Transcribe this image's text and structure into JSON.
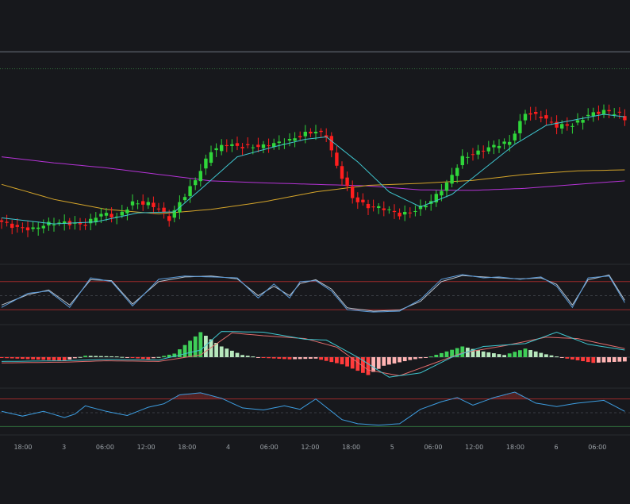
{
  "chart_data": {
    "type": "candlestick",
    "x_axis": {
      "ticks": [
        "18:00",
        "3",
        "06:00",
        "12:00",
        "18:00",
        "4",
        "06:00",
        "12:00",
        "18:00",
        "5",
        "06:00",
        "12:00",
        "18:00",
        "6",
        "06:00"
      ]
    },
    "colors": {
      "background": "#17181c",
      "up": "#2fd63a",
      "down": "#ff1e1e",
      "ma_fast": "#3fc6cf",
      "ma_mid": "#d4a42a",
      "ma_slow": "#b533d6",
      "osc_a": "#5b9bd9",
      "osc_b": "#b9c4d0",
      "hist_up": "#3fcf58",
      "hist_down": "#ff3b3b",
      "level_line": "#9b2a2a",
      "separator": "#2a2c31"
    },
    "price": {
      "close_anchors": [
        [
          0,
          80.0
        ],
        [
          3,
          79.0
        ],
        [
          6,
          78.5
        ],
        [
          9,
          79.5
        ],
        [
          12,
          80.0
        ],
        [
          16,
          79.5
        ],
        [
          19,
          81.5
        ],
        [
          22,
          81.0
        ],
        [
          25,
          84.0
        ],
        [
          28,
          83.5
        ],
        [
          30,
          82.5
        ],
        [
          32,
          80.5
        ],
        [
          34,
          84.0
        ],
        [
          37,
          88.5
        ],
        [
          40,
          94.0
        ],
        [
          43,
          95.5
        ],
        [
          46,
          95.2
        ],
        [
          50,
          95.0
        ],
        [
          54,
          96.0
        ],
        [
          58,
          97.8
        ],
        [
          60,
          98.0
        ],
        [
          62,
          97.0
        ],
        [
          64,
          91.0
        ],
        [
          67,
          85.0
        ],
        [
          70,
          83.0
        ],
        [
          73,
          82.5
        ],
        [
          76,
          81.5
        ],
        [
          79,
          82.5
        ],
        [
          82,
          84.0
        ],
        [
          85,
          87.5
        ],
        [
          88,
          93.0
        ],
        [
          91,
          94.0
        ],
        [
          94,
          95.0
        ],
        [
          97,
          96.0
        ],
        [
          100,
          102.0
        ],
        [
          103,
          101.0
        ],
        [
          106,
          99.0
        ],
        [
          109,
          99.5
        ],
        [
          112,
          101.5
        ],
        [
          115,
          102.0
        ],
        [
          118,
          101.5
        ],
        [
          119,
          100.5
        ]
      ],
      "ma_fast": [
        [
          0,
          80.8
        ],
        [
          10,
          79.6
        ],
        [
          18,
          80.0
        ],
        [
          26,
          81.8
        ],
        [
          33,
          82.0
        ],
        [
          38,
          86.5
        ],
        [
          45,
          93.0
        ],
        [
          52,
          95.0
        ],
        [
          58,
          96.5
        ],
        [
          62,
          97.0
        ],
        [
          68,
          92.0
        ],
        [
          74,
          86.0
        ],
        [
          80,
          83.0
        ],
        [
          86,
          85.5
        ],
        [
          92,
          90.5
        ],
        [
          98,
          95.5
        ],
        [
          104,
          99.3
        ],
        [
          110,
          100.5
        ],
        [
          115,
          101.5
        ],
        [
          119,
          101.0
        ]
      ],
      "ma_mid": [
        [
          0,
          87.5
        ],
        [
          10,
          84.5
        ],
        [
          20,
          82.5
        ],
        [
          30,
          81.6
        ],
        [
          40,
          82.5
        ],
        [
          50,
          84.0
        ],
        [
          60,
          86.0
        ],
        [
          70,
          87.3
        ],
        [
          80,
          87.7
        ],
        [
          90,
          88.3
        ],
        [
          100,
          89.5
        ],
        [
          110,
          90.2
        ],
        [
          119,
          90.4
        ]
      ],
      "ma_slow": [
        [
          0,
          93.0
        ],
        [
          10,
          91.8
        ],
        [
          20,
          90.8
        ],
        [
          30,
          89.5
        ],
        [
          40,
          88.2
        ],
        [
          50,
          87.8
        ],
        [
          60,
          87.5
        ],
        [
          70,
          87.2
        ],
        [
          80,
          86.4
        ],
        [
          90,
          86.3
        ],
        [
          100,
          86.7
        ],
        [
          110,
          87.5
        ],
        [
          119,
          88.2
        ]
      ],
      "ylim": [
        72,
        118
      ],
      "level_upper": 114.0,
      "level_dashed": 110.6
    },
    "oscillator_1": {
      "upper_level": 80,
      "lower_level": 20,
      "mid_level": 50,
      "series_a": [
        [
          0,
          25
        ],
        [
          5,
          55
        ],
        [
          9,
          60
        ],
        [
          13,
          25
        ],
        [
          17,
          88
        ],
        [
          21,
          80
        ],
        [
          25,
          28
        ],
        [
          30,
          85
        ],
        [
          35,
          92
        ],
        [
          40,
          90
        ],
        [
          45,
          88
        ],
        [
          49,
          45
        ],
        [
          52,
          75
        ],
        [
          55,
          45
        ],
        [
          57,
          80
        ],
        [
          60,
          82
        ],
        [
          63,
          60
        ],
        [
          66,
          20
        ],
        [
          71,
          15
        ],
        [
          76,
          17
        ],
        [
          80,
          42
        ],
        [
          84,
          85
        ],
        [
          88,
          95
        ],
        [
          92,
          88
        ],
        [
          95,
          90
        ],
        [
          99,
          85
        ],
        [
          103,
          90
        ],
        [
          106,
          70
        ],
        [
          109,
          25
        ],
        [
          112,
          88
        ],
        [
          116,
          92
        ],
        [
          119,
          35
        ]
      ],
      "series_b": [
        [
          0,
          30
        ],
        [
          5,
          52
        ],
        [
          9,
          62
        ],
        [
          13,
          30
        ],
        [
          17,
          84
        ],
        [
          21,
          82
        ],
        [
          25,
          32
        ],
        [
          30,
          80
        ],
        [
          35,
          90
        ],
        [
          40,
          92
        ],
        [
          45,
          86
        ],
        [
          49,
          50
        ],
        [
          52,
          70
        ],
        [
          55,
          50
        ],
        [
          57,
          76
        ],
        [
          60,
          84
        ],
        [
          63,
          64
        ],
        [
          66,
          24
        ],
        [
          71,
          17
        ],
        [
          76,
          19
        ],
        [
          80,
          38
        ],
        [
          84,
          80
        ],
        [
          88,
          93
        ],
        [
          92,
          90
        ],
        [
          95,
          88
        ],
        [
          99,
          86
        ],
        [
          103,
          88
        ],
        [
          106,
          74
        ],
        [
          109,
          30
        ],
        [
          112,
          84
        ],
        [
          116,
          94
        ],
        [
          119,
          40
        ]
      ]
    },
    "oscillator_2": {
      "hist": [
        [
          0,
          -0.1
        ],
        [
          12,
          -0.5
        ],
        [
          16,
          0.2
        ],
        [
          22,
          0.1
        ],
        [
          28,
          -0.3
        ],
        [
          33,
          0.5
        ],
        [
          38,
          3.5
        ],
        [
          42,
          1.5
        ],
        [
          46,
          0.3
        ],
        [
          50,
          -0.1
        ],
        [
          55,
          -0.3
        ],
        [
          60,
          -0.2
        ],
        [
          65,
          -1.0
        ],
        [
          70,
          -2.5
        ],
        [
          73,
          -1.2
        ],
        [
          78,
          -0.4
        ],
        [
          82,
          0.1
        ],
        [
          88,
          1.5
        ],
        [
          92,
          0.8
        ],
        [
          96,
          0.3
        ],
        [
          100,
          1.2
        ],
        [
          104,
          0.4
        ],
        [
          108,
          -0.2
        ],
        [
          113,
          -0.8
        ],
        [
          119,
          -0.6
        ]
      ],
      "line_a": [
        [
          0,
          -0.6
        ],
        [
          12,
          -0.5
        ],
        [
          20,
          -0.3
        ],
        [
          30,
          -0.4
        ],
        [
          38,
          1.0
        ],
        [
          42,
          3.6
        ],
        [
          50,
          3.5
        ],
        [
          58,
          2.5
        ],
        [
          62,
          2.4
        ],
        [
          68,
          0.0
        ],
        [
          74,
          -2.8
        ],
        [
          80,
          -2.2
        ],
        [
          86,
          0.0
        ],
        [
          92,
          1.5
        ],
        [
          100,
          1.9
        ],
        [
          106,
          3.5
        ],
        [
          112,
          1.8
        ],
        [
          119,
          1.0
        ]
      ],
      "line_b": [
        [
          0,
          -0.8
        ],
        [
          12,
          -0.7
        ],
        [
          20,
          -0.5
        ],
        [
          30,
          -0.6
        ],
        [
          38,
          0.3
        ],
        [
          44,
          3.4
        ],
        [
          50,
          3.0
        ],
        [
          58,
          2.6
        ],
        [
          64,
          1.4
        ],
        [
          70,
          -1.8
        ],
        [
          76,
          -2.6
        ],
        [
          82,
          -1.0
        ],
        [
          88,
          0.6
        ],
        [
          96,
          1.6
        ],
        [
          104,
          2.8
        ],
        [
          110,
          2.6
        ],
        [
          119,
          1.2
        ]
      ]
    },
    "oscillator_3": {
      "upper_level": 70,
      "lower_level": 30,
      "mid_level": 50,
      "series": [
        [
          0,
          52
        ],
        [
          4,
          45
        ],
        [
          8,
          52
        ],
        [
          12,
          43
        ],
        [
          14,
          48
        ],
        [
          16,
          60
        ],
        [
          20,
          52
        ],
        [
          24,
          46
        ],
        [
          28,
          58
        ],
        [
          31,
          63
        ],
        [
          34,
          76
        ],
        [
          38,
          79
        ],
        [
          42,
          71
        ],
        [
          46,
          57
        ],
        [
          50,
          54
        ],
        [
          54,
          60
        ],
        [
          57,
          55
        ],
        [
          60,
          70
        ],
        [
          62,
          58
        ],
        [
          65,
          40
        ],
        [
          68,
          34
        ],
        [
          72,
          32
        ],
        [
          76,
          34
        ],
        [
          80,
          55
        ],
        [
          84,
          66
        ],
        [
          87,
          72
        ],
        [
          90,
          61
        ],
        [
          94,
          72
        ],
        [
          98,
          80
        ],
        [
          102,
          64
        ],
        [
          106,
          59
        ],
        [
          110,
          64
        ],
        [
          115,
          68
        ],
        [
          119,
          52
        ]
      ]
    }
  }
}
